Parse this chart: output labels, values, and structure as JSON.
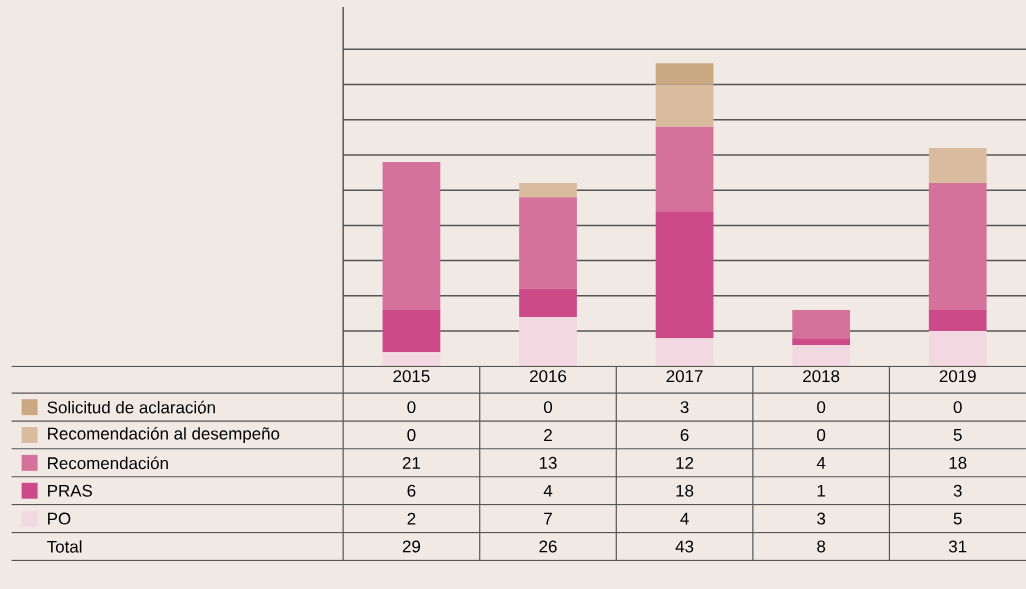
{
  "chart_data": {
    "type": "bar",
    "stacked": true,
    "categories": [
      "2015",
      "2016",
      "2017",
      "2018",
      "2019"
    ],
    "series": [
      {
        "name": "PO",
        "color": "#f1d8e1",
        "values": [
          2,
          7,
          4,
          3,
          5
        ]
      },
      {
        "name": "PRAS",
        "color": "#cc4a87",
        "values": [
          6,
          4,
          18,
          1,
          3
        ]
      },
      {
        "name": "Recomendación",
        "color": "#d5729b",
        "values": [
          21,
          13,
          12,
          4,
          18
        ]
      },
      {
        "name": "Recomendación al desempeño",
        "color": "#d9bc9d",
        "values": [
          0,
          2,
          6,
          0,
          5
        ]
      },
      {
        "name": "Solicitud de aclaración",
        "color": "#c9a882",
        "values": [
          0,
          0,
          3,
          0,
          0
        ]
      }
    ],
    "ylim": [
      0,
      51
    ],
    "yticks": [
      {
        "value": 5,
        "label": null
      },
      {
        "value": 10,
        "label": null
      },
      {
        "value": 15,
        "label": null
      },
      {
        "value": 20,
        "label": null
      },
      {
        "value": 25,
        "label": null
      },
      {
        "value": 30,
        "label": null
      },
      {
        "value": 35,
        "label": null
      },
      {
        "value": 40,
        "label": null
      },
      {
        "value": 45,
        "label": null
      }
    ],
    "grid": "y",
    "tick_labels": "x",
    "legend": "bottom",
    "data_labels": true,
    "annotations": [
      "Total",
      "29",
      "26",
      "43",
      "8",
      "31"
    ]
  }
}
